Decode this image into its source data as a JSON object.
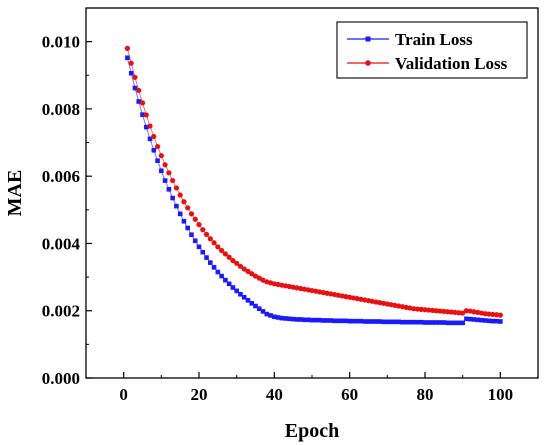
{
  "chart_data": {
    "type": "line",
    "title": "",
    "xlabel": "Epoch",
    "ylabel": "MAE",
    "xlim": [
      -10,
      110
    ],
    "ylim": [
      0,
      0.011
    ],
    "xticks": [
      0,
      20,
      40,
      60,
      80,
      100
    ],
    "yticks": [
      0.0,
      0.002,
      0.004,
      0.006,
      0.008,
      0.01
    ],
    "xtick_labels": [
      "0",
      "20",
      "40",
      "60",
      "80",
      "100"
    ],
    "ytick_labels": [
      "0.000",
      "0.002",
      "0.004",
      "0.006",
      "0.008",
      "0.010"
    ],
    "grid": false,
    "legend": "top-right",
    "series": [
      {
        "name": "Train Loss",
        "color": "#1a1aff",
        "marker": "square",
        "x": [
          1,
          2,
          3,
          4,
          5,
          6,
          7,
          8,
          9,
          10,
          11,
          12,
          13,
          14,
          15,
          16,
          17,
          18,
          19,
          20,
          21,
          22,
          23,
          24,
          25,
          26,
          27,
          28,
          29,
          30,
          31,
          32,
          33,
          34,
          35,
          36,
          37,
          38,
          39,
          40,
          41,
          42,
          43,
          44,
          45,
          46,
          47,
          48,
          49,
          50,
          51,
          52,
          53,
          54,
          55,
          56,
          57,
          58,
          59,
          60,
          61,
          62,
          63,
          64,
          65,
          66,
          67,
          68,
          69,
          70,
          71,
          72,
          73,
          74,
          75,
          76,
          77,
          78,
          79,
          80,
          81,
          82,
          83,
          84,
          85,
          86,
          87,
          88,
          89,
          90,
          91,
          92,
          93,
          94,
          95,
          96,
          97,
          98,
          99,
          100
        ],
        "values": [
          0.00952,
          0.00906,
          0.00862,
          0.00822,
          0.00783,
          0.00746,
          0.00711,
          0.00677,
          0.00646,
          0.00616,
          0.00587,
          0.00561,
          0.00535,
          0.00511,
          0.00488,
          0.00466,
          0.00446,
          0.00426,
          0.00408,
          0.0039,
          0.00374,
          0.00358,
          0.00343,
          0.00329,
          0.00315,
          0.00303,
          0.00291,
          0.0028,
          0.00269,
          0.00259,
          0.00249,
          0.0024,
          0.00231,
          0.00222,
          0.00214,
          0.00206,
          0.00198,
          0.0019,
          0.00186,
          0.00182,
          0.0018,
          0.00178,
          0.00177,
          0.00176,
          0.00175,
          0.00174,
          0.00174,
          0.00173,
          0.00173,
          0.00172,
          0.00172,
          0.00172,
          0.00171,
          0.00171,
          0.00171,
          0.0017,
          0.0017,
          0.0017,
          0.0017,
          0.00169,
          0.00169,
          0.00169,
          0.00169,
          0.00168,
          0.00168,
          0.00168,
          0.00168,
          0.00168,
          0.00167,
          0.00167,
          0.00167,
          0.00167,
          0.00167,
          0.00166,
          0.00166,
          0.00166,
          0.00166,
          0.00166,
          0.00166,
          0.00165,
          0.00165,
          0.00165,
          0.00165,
          0.00165,
          0.00165,
          0.00164,
          0.00164,
          0.00164,
          0.00164,
          0.00164,
          0.00176,
          0.00175,
          0.00174,
          0.00173,
          0.00172,
          0.00171,
          0.0017,
          0.00169,
          0.00169,
          0.00168
        ]
      },
      {
        "name": "Validation Loss",
        "color": "#e81010",
        "marker": "circle",
        "x": [
          1,
          2,
          3,
          4,
          5,
          6,
          7,
          8,
          9,
          10,
          11,
          12,
          13,
          14,
          15,
          16,
          17,
          18,
          19,
          20,
          21,
          22,
          23,
          24,
          25,
          26,
          27,
          28,
          29,
          30,
          31,
          32,
          33,
          34,
          35,
          36,
          37,
          38,
          39,
          40,
          41,
          42,
          43,
          44,
          45,
          46,
          47,
          48,
          49,
          50,
          51,
          52,
          53,
          54,
          55,
          56,
          57,
          58,
          59,
          60,
          61,
          62,
          63,
          64,
          65,
          66,
          67,
          68,
          69,
          70,
          71,
          72,
          73,
          74,
          75,
          76,
          77,
          78,
          79,
          80,
          81,
          82,
          83,
          84,
          85,
          86,
          87,
          88,
          89,
          90,
          91,
          92,
          93,
          94,
          95,
          96,
          97,
          98,
          99,
          100
        ],
        "values": [
          0.0098,
          0.00936,
          0.00894,
          0.00855,
          0.00818,
          0.00782,
          0.00749,
          0.00718,
          0.00688,
          0.00661,
          0.00634,
          0.0061,
          0.00587,
          0.00565,
          0.00544,
          0.00524,
          0.00506,
          0.00488,
          0.00472,
          0.00456,
          0.00441,
          0.00427,
          0.00414,
          0.00402,
          0.0039,
          0.00379,
          0.00369,
          0.00359,
          0.00349,
          0.00341,
          0.00332,
          0.00324,
          0.00317,
          0.0031,
          0.00303,
          0.00297,
          0.00291,
          0.00286,
          0.00283,
          0.0028,
          0.00278,
          0.00276,
          0.00274,
          0.00272,
          0.0027,
          0.00268,
          0.00266,
          0.00264,
          0.00262,
          0.0026,
          0.00258,
          0.00256,
          0.00254,
          0.00252,
          0.0025,
          0.00248,
          0.00246,
          0.00244,
          0.00242,
          0.0024,
          0.00238,
          0.00236,
          0.00234,
          0.00232,
          0.0023,
          0.00228,
          0.00226,
          0.00224,
          0.00222,
          0.0022,
          0.00218,
          0.00216,
          0.00214,
          0.00212,
          0.0021,
          0.00208,
          0.00206,
          0.00205,
          0.00204,
          0.00203,
          0.00202,
          0.00201,
          0.002,
          0.00199,
          0.00198,
          0.00197,
          0.00196,
          0.00195,
          0.00194,
          0.00193,
          0.002,
          0.00199,
          0.00197,
          0.00195,
          0.00193,
          0.00191,
          0.0019,
          0.00189,
          0.00188,
          0.00187
        ]
      }
    ]
  }
}
